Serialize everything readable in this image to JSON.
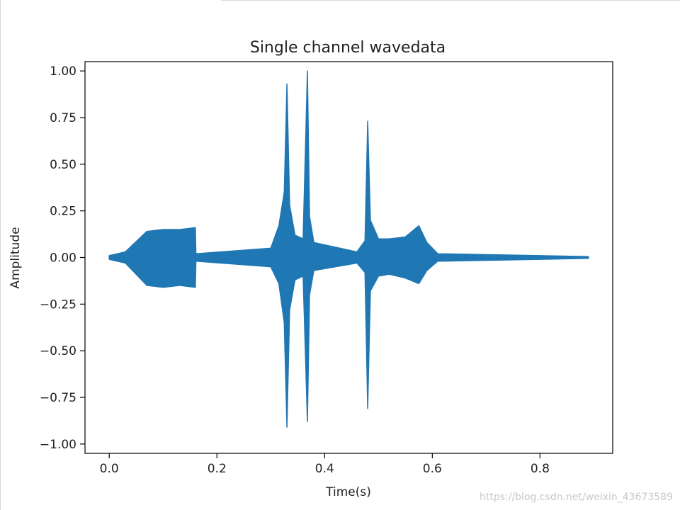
{
  "chart_data": {
    "type": "line",
    "title": "Single channel wavedata",
    "xlabel": "Time(s)",
    "ylabel": "Amplitude",
    "xlim": [
      -0.045,
      0.935
    ],
    "ylim": [
      -1.05,
      1.05
    ],
    "xticks": [
      0.0,
      0.2,
      0.4,
      0.6,
      0.8
    ],
    "xtick_labels": [
      "0.0",
      "0.2",
      "0.4",
      "0.6",
      "0.8"
    ],
    "yticks": [
      1.0,
      0.75,
      0.5,
      0.25,
      0.0,
      -0.25,
      -0.5,
      -0.75,
      -1.0
    ],
    "ytick_labels": [
      "1.00",
      "0.75",
      "0.50",
      "0.25",
      "0.00",
      "−0.25",
      "−0.50",
      "−0.75",
      "−1.00"
    ],
    "grid": false,
    "series_color": "#1f77b4",
    "series": [
      {
        "x": [
          0.0,
          0.03,
          0.07,
          0.071,
          0.1,
          0.101,
          0.13,
          0.131,
          0.16,
          0.161,
          0.3,
          0.315,
          0.325,
          0.33,
          0.335,
          0.345,
          0.36,
          0.368,
          0.372,
          0.38,
          0.46,
          0.475,
          0.48,
          0.485,
          0.5,
          0.52,
          0.55,
          0.575,
          0.59,
          0.61,
          0.89
        ],
        "y_max": [
          0.01,
          0.03,
          0.14,
          0.14,
          0.15,
          0.15,
          0.15,
          0.15,
          0.16,
          0.02,
          0.05,
          0.17,
          0.35,
          0.93,
          0.28,
          0.12,
          0.1,
          1.0,
          0.22,
          0.08,
          0.03,
          0.09,
          0.73,
          0.2,
          0.1,
          0.1,
          0.11,
          0.17,
          0.08,
          0.02,
          0.005
        ],
        "y_min": [
          -0.01,
          -0.03,
          -0.15,
          -0.15,
          -0.16,
          -0.16,
          -0.15,
          -0.15,
          -0.16,
          -0.02,
          -0.05,
          -0.14,
          -0.35,
          -0.91,
          -0.28,
          -0.12,
          -0.1,
          -0.88,
          -0.2,
          -0.07,
          -0.03,
          -0.08,
          -0.81,
          -0.18,
          -0.1,
          -0.09,
          -0.11,
          -0.14,
          -0.07,
          -0.02,
          -0.005
        ]
      }
    ]
  },
  "watermark": "https://blog.csdn.net/weixin_43673589"
}
